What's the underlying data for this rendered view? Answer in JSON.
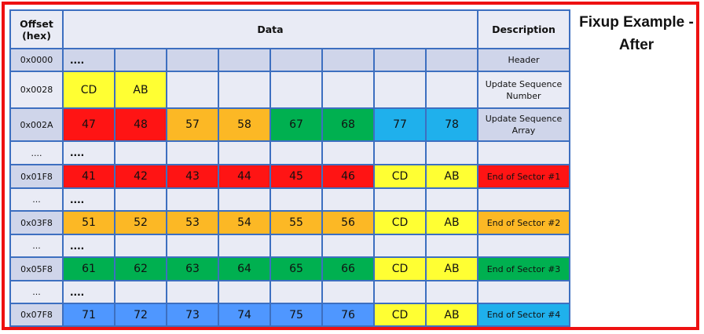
{
  "title": "Fixup Example - After",
  "headers": {
    "offset": "Offset (hex)",
    "data": "Data",
    "description": "Description"
  },
  "colors": {
    "light": "#e9ebf5",
    "dark": "#cfd5ea",
    "red": "#ff1414",
    "orange": "#fcb825",
    "green": "#00b050",
    "cyan": "#1fb0ec",
    "blue": "#4f97ff",
    "yellow": "#ffff33"
  },
  "rows": [
    {
      "offset": "0x0000",
      "shade": "dark",
      "dots": "....",
      "cells": [],
      "description": "Header",
      "desc_color": "dark"
    },
    {
      "offset": "0x0028",
      "shade": "light",
      "cells": [
        {
          "text": "CD",
          "color": "yellow"
        },
        {
          "text": "AB",
          "color": "yellow"
        }
      ],
      "description": "Update Sequence Number",
      "desc_color": "light"
    },
    {
      "offset": "0x002A",
      "shade": "dark",
      "cells": [
        {
          "text": "47",
          "color": "red"
        },
        {
          "text": "48",
          "color": "red"
        },
        {
          "text": "57",
          "color": "orange"
        },
        {
          "text": "58",
          "color": "orange"
        },
        {
          "text": "67",
          "color": "green"
        },
        {
          "text": "68",
          "color": "green"
        },
        {
          "text": "77",
          "color": "cyan"
        },
        {
          "text": "78",
          "color": "cyan"
        }
      ],
      "description": "Update Sequence Array",
      "desc_color": "dark"
    },
    {
      "offset": "....",
      "shade": "light",
      "dots": "....",
      "cells": [],
      "description": "",
      "desc_color": "light"
    },
    {
      "offset": "0x01F8",
      "shade": "dark",
      "cells": [
        {
          "text": "41",
          "color": "red"
        },
        {
          "text": "42",
          "color": "red"
        },
        {
          "text": "43",
          "color": "red"
        },
        {
          "text": "44",
          "color": "red"
        },
        {
          "text": "45",
          "color": "red"
        },
        {
          "text": "46",
          "color": "red"
        },
        {
          "text": "CD",
          "color": "yellow"
        },
        {
          "text": "AB",
          "color": "yellow"
        }
      ],
      "description": "End of Sector #1",
      "desc_color": "red"
    },
    {
      "offset": "...",
      "shade": "light",
      "dots": "....",
      "cells": [],
      "description": "",
      "desc_color": "light"
    },
    {
      "offset": "0x03F8",
      "shade": "dark",
      "cells": [
        {
          "text": "51",
          "color": "orange"
        },
        {
          "text": "52",
          "color": "orange"
        },
        {
          "text": "53",
          "color": "orange"
        },
        {
          "text": "54",
          "color": "orange"
        },
        {
          "text": "55",
          "color": "orange"
        },
        {
          "text": "56",
          "color": "orange"
        },
        {
          "text": "CD",
          "color": "yellow"
        },
        {
          "text": "AB",
          "color": "yellow"
        }
      ],
      "description": "End of Sector #2",
      "desc_color": "orange"
    },
    {
      "offset": "...",
      "shade": "light",
      "dots": "....",
      "cells": [],
      "description": "",
      "desc_color": "light"
    },
    {
      "offset": "0x05F8",
      "shade": "dark",
      "cells": [
        {
          "text": "61",
          "color": "green"
        },
        {
          "text": "62",
          "color": "green"
        },
        {
          "text": "63",
          "color": "green"
        },
        {
          "text": "64",
          "color": "green"
        },
        {
          "text": "65",
          "color": "green"
        },
        {
          "text": "66",
          "color": "green"
        },
        {
          "text": "CD",
          "color": "yellow"
        },
        {
          "text": "AB",
          "color": "yellow"
        }
      ],
      "description": "End of Sector #3",
      "desc_color": "green"
    },
    {
      "offset": "...",
      "shade": "light",
      "dots": "....",
      "cells": [],
      "description": "",
      "desc_color": "light"
    },
    {
      "offset": "0x07F8",
      "shade": "dark",
      "cells": [
        {
          "text": "71",
          "color": "blue"
        },
        {
          "text": "72",
          "color": "blue"
        },
        {
          "text": "73",
          "color": "blue"
        },
        {
          "text": "74",
          "color": "blue"
        },
        {
          "text": "75",
          "color": "blue"
        },
        {
          "text": "76",
          "color": "blue"
        },
        {
          "text": "CD",
          "color": "yellow"
        },
        {
          "text": "AB",
          "color": "yellow"
        }
      ],
      "description": "End of Sector #4",
      "desc_color": "cyan"
    }
  ]
}
